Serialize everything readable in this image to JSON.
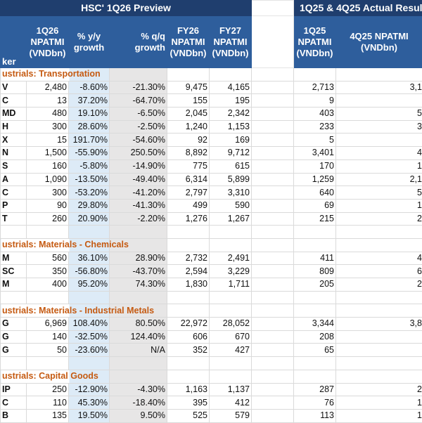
{
  "header": {
    "preview_title": "HSC' 1Q26 Preview",
    "actual_title": "1Q25 & 4Q25 Actual Resul",
    "columns": {
      "ticker": "ker",
      "q126": "1Q26 NPATMI (VNDbn)",
      "yy": "% y/y growth",
      "qq": "% q/q growth",
      "fy26": "FY26 NPATMI (VNDbn)",
      "fy27": "FY27 NPATMI (VNDbn)",
      "q125": "1Q25 NPATMI (VNDbn)",
      "q425": "4Q25 NPATMI (VNDbn)"
    }
  },
  "colors": {
    "top_bar": "#1f3e6e",
    "header": "#2e5e9c",
    "section_text": "#c55a11",
    "yy_fill": "#ddebf7",
    "qq_fill": "#e7e6e6"
  },
  "sections": [
    {
      "name": "ustrials: Transportation",
      "rows": [
        [
          "V",
          "2,480",
          "-8.60%",
          "-21.30%",
          "9,475",
          "4,165",
          "2,713",
          "3,1"
        ],
        [
          "C",
          "13",
          "37.20%",
          "-64.70%",
          "155",
          "195",
          "9",
          ""
        ],
        [
          "MD",
          "480",
          "19.10%",
          "-6.50%",
          "2,045",
          "2,342",
          "403",
          "5"
        ],
        [
          "H",
          "300",
          "28.60%",
          "-2.50%",
          "1,240",
          "1,153",
          "233",
          "3"
        ],
        [
          "X",
          "15",
          "191.70%",
          "-54.60%",
          "92",
          "169",
          "5",
          ""
        ],
        [
          "N",
          "1,500",
          "-55.90%",
          "250.50%",
          "8,892",
          "9,712",
          "3,401",
          "4"
        ],
        [
          "S",
          "160",
          "-5.80%",
          "-14.90%",
          "775",
          "615",
          "170",
          "1"
        ],
        [
          "A",
          "1,090",
          "-13.50%",
          "-49.40%",
          "6,314",
          "5,899",
          "1,259",
          "2,1"
        ],
        [
          "C",
          "300",
          "-53.20%",
          "-41.20%",
          "2,797",
          "3,310",
          "640",
          "5"
        ],
        [
          "P",
          "90",
          "29.80%",
          "-41.30%",
          "499",
          "590",
          "69",
          "1"
        ],
        [
          "T",
          "260",
          "20.90%",
          "-2.20%",
          "1,276",
          "1,267",
          "215",
          "2"
        ]
      ]
    },
    {
      "name": "ustrials: Materials - Chemicals",
      "rows": [
        [
          "M",
          "560",
          "36.10%",
          "28.90%",
          "2,732",
          "2,491",
          "411",
          "4"
        ],
        [
          "SC",
          "350",
          "-56.80%",
          "-43.70%",
          "2,594",
          "3,229",
          "809",
          "6"
        ],
        [
          "M",
          "400",
          "95.20%",
          "74.30%",
          "1,830",
          "1,711",
          "205",
          "2"
        ]
      ]
    },
    {
      "name": "ustrials: Materials - Industrial Metals",
      "rows": [
        [
          "G",
          "6,969",
          "108.40%",
          "80.50%",
          "22,972",
          "28,052",
          "3,344",
          "3,8"
        ],
        [
          "G",
          "140",
          "-32.50%",
          "124.40%",
          "606",
          "670",
          "208",
          ""
        ],
        [
          "G",
          "50",
          "-23.60%",
          "N/A",
          "352",
          "427",
          "65",
          ""
        ]
      ]
    },
    {
      "name": "ustrials: Capital Goods",
      "rows": [
        [
          "IP",
          "250",
          "-12.90%",
          "-4.30%",
          "1,163",
          "1,137",
          "287",
          "2"
        ],
        [
          "C",
          "110",
          "45.30%",
          "-18.40%",
          "395",
          "412",
          "76",
          "1"
        ],
        [
          "B",
          "135",
          "19.50%",
          "9.50%",
          "525",
          "579",
          "113",
          "1"
        ]
      ]
    }
  ]
}
